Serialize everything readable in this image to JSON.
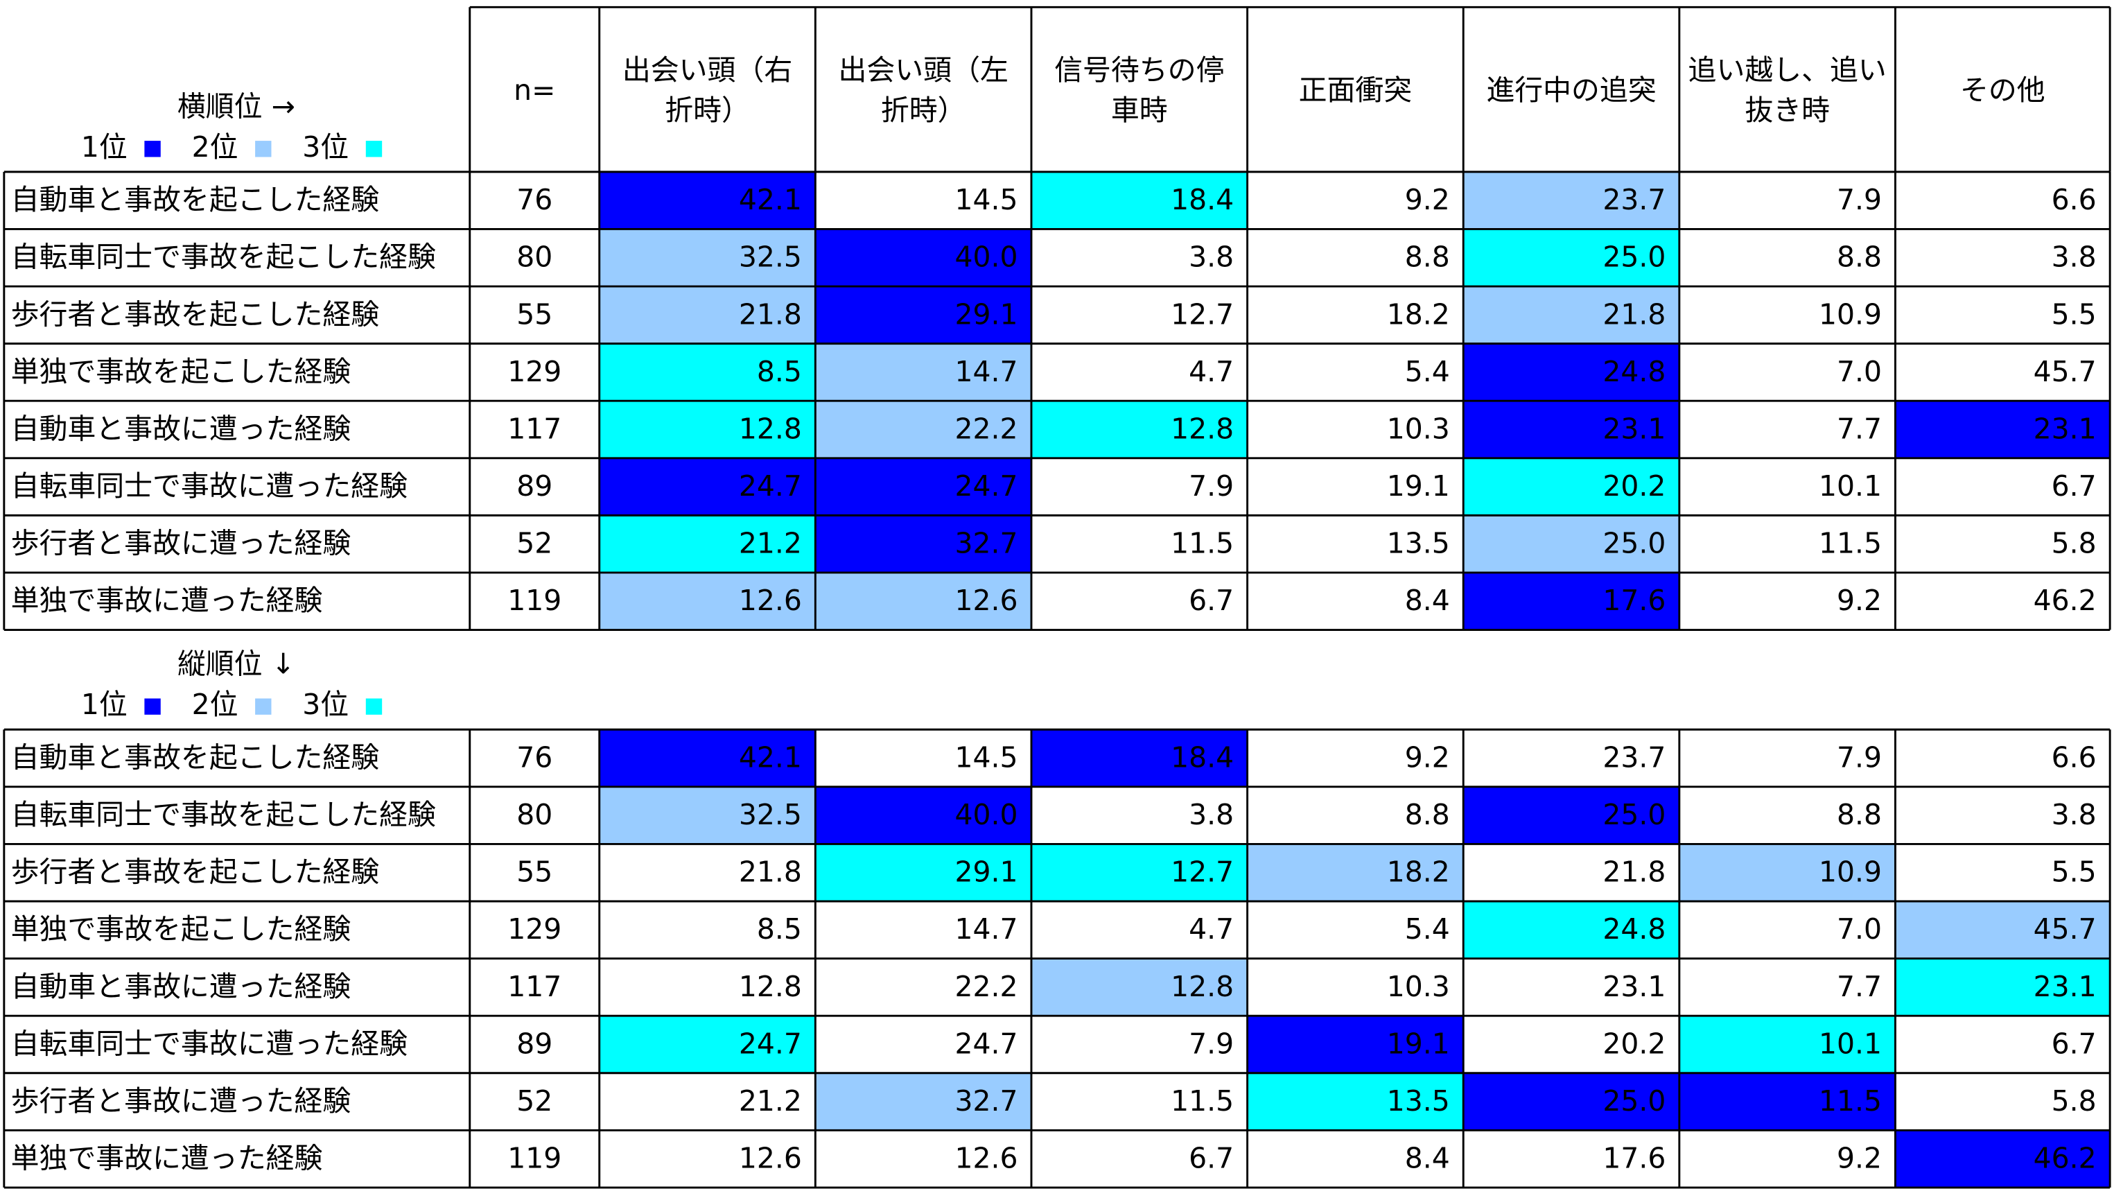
{
  "legend": [
    {
      "label": "1位",
      "color": "#0000ff"
    },
    {
      "label": "2位",
      "color": "#99ccff"
    },
    {
      "label": "3位",
      "color": "#00ffff"
    }
  ],
  "tables": [
    {
      "caption": "横順位 →",
      "headers": [
        [
          "n="
        ],
        [
          "出会い頭（右",
          "折時）"
        ],
        [
          "出会い頭（左",
          "折時）"
        ],
        [
          "信号待ちの停",
          "車時"
        ],
        [
          "正面衝突"
        ],
        [
          "進行中の追突"
        ],
        [
          "追い越し、追い",
          "抜き時"
        ],
        [
          "その他"
        ]
      ],
      "rows": [
        {
          "label": "自動車と事故を起こした経験",
          "n": "76",
          "values": [
            "42.1",
            "14.5",
            "18.4",
            "9.2",
            "23.7",
            "7.9",
            "6.6"
          ],
          "ranks": [
            1,
            null,
            3,
            null,
            2,
            null,
            null
          ]
        },
        {
          "label": "自転車同士で事故を起こした経験",
          "n": "80",
          "values": [
            "32.5",
            "40.0",
            "3.8",
            "8.8",
            "25.0",
            "8.8",
            "3.8"
          ],
          "ranks": [
            2,
            1,
            null,
            null,
            3,
            null,
            null
          ]
        },
        {
          "label": "歩行者と事故を起こした経験",
          "n": "55",
          "values": [
            "21.8",
            "29.1",
            "12.7",
            "18.2",
            "21.8",
            "10.9",
            "5.5"
          ],
          "ranks": [
            2,
            1,
            null,
            null,
            2,
            null,
            null
          ]
        },
        {
          "label": "単独で事故を起こした経験",
          "n": "129",
          "values": [
            "8.5",
            "14.7",
            "4.7",
            "5.4",
            "24.8",
            "7.0",
            "45.7"
          ],
          "ranks": [
            3,
            2,
            null,
            null,
            1,
            null,
            null
          ]
        },
        {
          "label": "自動車と事故に遭った経験",
          "n": "117",
          "values": [
            "12.8",
            "22.2",
            "12.8",
            "10.3",
            "23.1",
            "7.7",
            "23.1"
          ],
          "ranks": [
            3,
            2,
            3,
            null,
            1,
            null,
            1
          ]
        },
        {
          "label": "自転車同士で事故に遭った経験",
          "n": "89",
          "values": [
            "24.7",
            "24.7",
            "7.9",
            "19.1",
            "20.2",
            "10.1",
            "6.7"
          ],
          "ranks": [
            1,
            1,
            null,
            null,
            3,
            null,
            null
          ]
        },
        {
          "label": "歩行者と事故に遭った経験",
          "n": "52",
          "values": [
            "21.2",
            "32.7",
            "11.5",
            "13.5",
            "25.0",
            "11.5",
            "5.8"
          ],
          "ranks": [
            3,
            1,
            null,
            null,
            2,
            null,
            null
          ]
        },
        {
          "label": "単独で事故に遭った経験",
          "n": "119",
          "values": [
            "12.6",
            "12.6",
            "6.7",
            "8.4",
            "17.6",
            "9.2",
            "46.2"
          ],
          "ranks": [
            2,
            2,
            null,
            null,
            1,
            null,
            null
          ]
        }
      ]
    },
    {
      "caption": "縦順位 ↓",
      "rows": [
        {
          "label": "自動車と事故を起こした経験",
          "n": "76",
          "values": [
            "42.1",
            "14.5",
            "18.4",
            "9.2",
            "23.7",
            "7.9",
            "6.6"
          ],
          "ranks": [
            1,
            null,
            1,
            null,
            null,
            null,
            null
          ]
        },
        {
          "label": "自転車同士で事故を起こした経験",
          "n": "80",
          "values": [
            "32.5",
            "40.0",
            "3.8",
            "8.8",
            "25.0",
            "8.8",
            "3.8"
          ],
          "ranks": [
            2,
            1,
            null,
            null,
            1,
            null,
            null
          ]
        },
        {
          "label": "歩行者と事故を起こした経験",
          "n": "55",
          "values": [
            "21.8",
            "29.1",
            "12.7",
            "18.2",
            "21.8",
            "10.9",
            "5.5"
          ],
          "ranks": [
            null,
            3,
            3,
            2,
            null,
            2,
            null
          ]
        },
        {
          "label": "単独で事故を起こした経験",
          "n": "129",
          "values": [
            "8.5",
            "14.7",
            "4.7",
            "5.4",
            "24.8",
            "7.0",
            "45.7"
          ],
          "ranks": [
            null,
            null,
            null,
            null,
            3,
            null,
            2
          ]
        },
        {
          "label": "自動車と事故に遭った経験",
          "n": "117",
          "values": [
            "12.8",
            "22.2",
            "12.8",
            "10.3",
            "23.1",
            "7.7",
            "23.1"
          ],
          "ranks": [
            null,
            null,
            2,
            null,
            null,
            null,
            3
          ]
        },
        {
          "label": "自転車同士で事故に遭った経験",
          "n": "89",
          "values": [
            "24.7",
            "24.7",
            "7.9",
            "19.1",
            "20.2",
            "10.1",
            "6.7"
          ],
          "ranks": [
            3,
            null,
            null,
            1,
            null,
            3,
            null
          ]
        },
        {
          "label": "歩行者と事故に遭った経験",
          "n": "52",
          "values": [
            "21.2",
            "32.7",
            "11.5",
            "13.5",
            "25.0",
            "11.5",
            "5.8"
          ],
          "ranks": [
            null,
            2,
            null,
            3,
            1,
            1,
            null
          ]
        },
        {
          "label": "単独で事故に遭った経験",
          "n": "119",
          "values": [
            "12.6",
            "12.6",
            "6.7",
            "8.4",
            "17.6",
            "9.2",
            "46.2"
          ],
          "ranks": [
            null,
            null,
            null,
            null,
            null,
            null,
            1
          ]
        }
      ]
    }
  ]
}
